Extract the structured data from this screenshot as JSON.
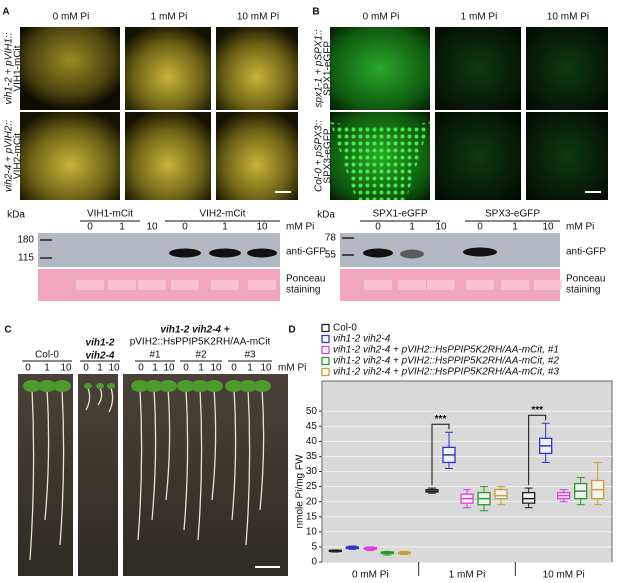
{
  "figure": {
    "a": {
      "letter": "A",
      "columns": [
        "0 mM Pi",
        "1 mM Pi",
        "10 mM Pi"
      ],
      "rows": [
        [
          "vih1-2 + pVIH1::",
          "VIH1-mCit"
        ],
        [
          "vih2-4 + pVIH2::",
          "VIH2-mCit"
        ]
      ],
      "blot": {
        "kda": "kDa",
        "markers": [
          "180",
          "115"
        ],
        "groups": [
          "VIH1-mCit",
          "VIH2-mCit"
        ],
        "unit": "mM Pi",
        "lanes": [
          "0",
          "1",
          "10",
          "0",
          "1",
          "10"
        ],
        "antibody": "anti-GFP",
        "stain": [
          "Ponceau",
          "staining"
        ]
      }
    },
    "b": {
      "letter": "B",
      "columns": [
        "0 mM Pi",
        "1 mM Pi",
        "10 mM Pi"
      ],
      "rows": [
        [
          "spx1-1 + pSPX1::",
          "SPX1-eGFP"
        ],
        [
          "Col-0 + pSPX3::",
          "SPX3-eGFP"
        ]
      ],
      "blot": {
        "kda": "kDa",
        "markers": [
          "78",
          "55"
        ],
        "groups": [
          "SPX1-eGFP",
          "SPX3-eGFP"
        ],
        "unit": "mM Pi",
        "lanes": [
          "0",
          "1",
          "10",
          "0",
          "1",
          "10"
        ],
        "antibody": "anti-GFP",
        "stain": [
          "Ponceau",
          "staining"
        ]
      }
    },
    "c": {
      "letter": "C",
      "header": [
        "vih1-2 vih2-4 +",
        "pVIH2::HsPPIP5K2RH/AA-mCit"
      ],
      "groups": [
        [
          "Col-0"
        ],
        [
          "vih1-2",
          "vih2-4"
        ],
        [
          "#1"
        ],
        [
          "#2"
        ],
        [
          "#3"
        ]
      ],
      "lanes": [
        "0",
        "1",
        "10",
        "0",
        "1",
        "10",
        "0",
        "1",
        "10",
        "0",
        "1",
        "10",
        "0",
        "1",
        "10"
      ],
      "unit": "mM Pi"
    },
    "d": {
      "letter": "D"
    }
  },
  "chart_data": {
    "type": "box",
    "ylabel": "nmole Pi/mg FW",
    "categories": [
      "0 mM Pi",
      "1 mM Pi",
      "10 mM Pi"
    ],
    "ylim": [
      0,
      60
    ],
    "yticks": [
      0,
      5,
      10,
      15,
      20,
      25,
      30,
      35,
      40,
      45,
      50
    ],
    "grid": true,
    "series": [
      {
        "name": "Col-0",
        "color": "#222222",
        "min": [
          3.3,
          22.8,
          18
        ],
        "q1": [
          3.5,
          23.2,
          19.5
        ],
        "median": [
          3.7,
          23.5,
          21
        ],
        "q3": [
          3.9,
          24,
          23
        ],
        "max": [
          4,
          24.5,
          24.5
        ]
      },
      {
        "name": "vih1-2 vih2-4",
        "color": "#3333cc",
        "min": [
          4.2,
          31,
          33
        ],
        "q1": [
          4.5,
          33,
          36
        ],
        "median": [
          4.8,
          35.5,
          38.5
        ],
        "q3": [
          5,
          38,
          41
        ],
        "max": [
          5.3,
          43,
          46
        ]
      },
      {
        "name": "vih1-2 vih2-4 + pVIH2::HsPPIP5K2RH/AA-mCit, #1",
        "color": "#e040e0",
        "min": [
          3.8,
          18,
          20
        ],
        "q1": [
          4.2,
          19.5,
          21
        ],
        "median": [
          4.5,
          21,
          22
        ],
        "q3": [
          4.8,
          22.5,
          23
        ],
        "max": [
          5,
          24,
          24
        ]
      },
      {
        "name": "vih1-2 vih2-4 + pVIH2::HsPPIP5K2RH/AA-mCit, #2",
        "color": "#2a9a2a",
        "min": [
          2.3,
          17,
          19
        ],
        "q1": [
          2.8,
          19,
          21
        ],
        "median": [
          3,
          21,
          23.5
        ],
        "q3": [
          3.3,
          23,
          26
        ],
        "max": [
          3.5,
          25,
          28
        ]
      },
      {
        "name": "vih1-2 vih2-4 + pVIH2::HsPPIP5K2RH/AA-mCit, #3",
        "color": "#c8a030",
        "min": [
          2.5,
          19,
          19
        ],
        "q1": [
          2.8,
          21,
          21
        ],
        "median": [
          3,
          22,
          24
        ],
        "q3": [
          3.2,
          24,
          27
        ],
        "max": [
          3.5,
          25,
          33
        ]
      }
    ],
    "annotations": [
      "***",
      "***"
    ]
  }
}
